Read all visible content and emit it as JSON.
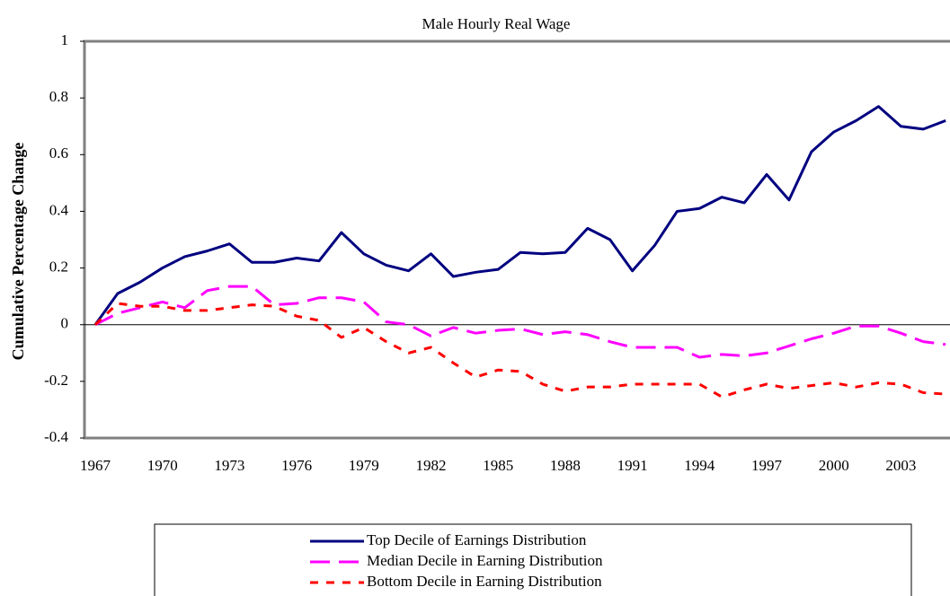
{
  "chart_data": {
    "type": "line",
    "title": "Male Hourly Real Wage",
    "y_label": "Cumulative Percentage Change",
    "categories": [
      "1967",
      null,
      null,
      "1970",
      null,
      null,
      "1973",
      null,
      null,
      "1976",
      null,
      null,
      "1979",
      null,
      null,
      "1982",
      null,
      null,
      "1985",
      null,
      null,
      "1988",
      null,
      null,
      "1991",
      null,
      null,
      "1994",
      null,
      null,
      "1997",
      null,
      null,
      "2000",
      null,
      null,
      "2003",
      null,
      null
    ],
    "ylim": [
      -0.4,
      1
    ],
    "yticks": [
      -0.4,
      -0.2,
      0,
      0.2,
      0.4,
      0.6,
      0.8,
      1
    ],
    "series": [
      {
        "name": "Top Decile of Earnings Distribution",
        "color": "#000080",
        "dash": "solid",
        "values": [
          0,
          0.11,
          0.15,
          0.2,
          0.24,
          0.26,
          0.285,
          0.22,
          0.22,
          0.235,
          0.225,
          0.325,
          0.25,
          0.21,
          0.19,
          0.25,
          0.17,
          0.185,
          0.195,
          0.255,
          0.25,
          0.255,
          0.34,
          0.3,
          0.19,
          0.28,
          0.4,
          0.41,
          0.45,
          0.43,
          0.53,
          0.44,
          0.61,
          0.68,
          0.72,
          0.77,
          0.7,
          0.69,
          0.72
        ]
      },
      {
        "name": "Median Decile in Earning Distribution",
        "color": "#ff00ff",
        "dash": "long",
        "values": [
          0,
          0.04,
          0.06,
          0.08,
          0.06,
          0.12,
          0.135,
          0.135,
          0.07,
          0.075,
          0.095,
          0.095,
          0.08,
          0.01,
          0,
          -0.04,
          -0.01,
          -0.03,
          -0.02,
          -0.015,
          -0.035,
          -0.025,
          -0.035,
          -0.06,
          -0.08,
          -0.08,
          -0.08,
          -0.115,
          -0.105,
          -0.11,
          -0.1,
          -0.075,
          -0.05,
          -0.03,
          -0.005,
          -0.005,
          -0.03,
          -0.06,
          -0.07
        ]
      },
      {
        "name": "Bottom Decile in Earning Distribution",
        "color": "#ff0000",
        "dash": "short",
        "values": [
          0,
          0.075,
          0.065,
          0.065,
          0.05,
          0.05,
          0.06,
          0.07,
          0.065,
          0.03,
          0.015,
          -0.045,
          -0.01,
          -0.06,
          -0.1,
          -0.08,
          -0.135,
          -0.185,
          -0.16,
          -0.165,
          -0.21,
          -0.235,
          -0.22,
          -0.22,
          -0.21,
          -0.21,
          -0.21,
          -0.21,
          -0.255,
          -0.23,
          -0.21,
          -0.225,
          -0.215,
          -0.205,
          -0.22,
          -0.205,
          -0.21,
          -0.24,
          -0.245
        ]
      }
    ]
  }
}
